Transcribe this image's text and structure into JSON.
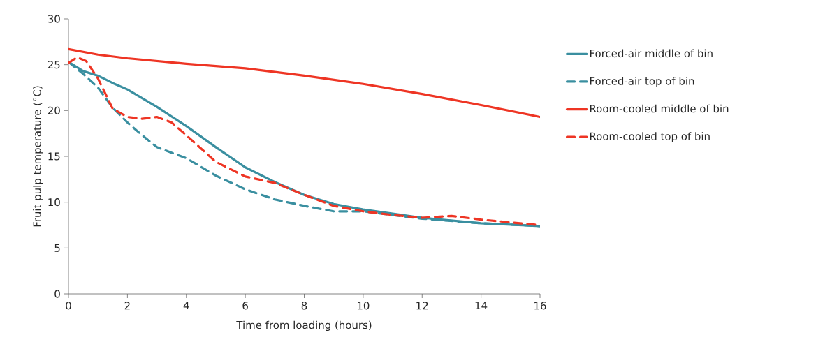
{
  "chart_data": {
    "type": "line",
    "xlabel": "Time from loading (hours)",
    "ylabel": "Fruit pulp temperature (°C)",
    "xlim": [
      0,
      16
    ],
    "ylim": [
      0,
      30
    ],
    "xticks": [
      0,
      2,
      4,
      6,
      8,
      10,
      12,
      14,
      16
    ],
    "yticks": [
      0,
      5,
      10,
      15,
      20,
      25,
      30
    ],
    "grid": false,
    "legend": "right",
    "marker": "none",
    "series": [
      {
        "name": "Forced-air middle of bin",
        "color": "#3a8fa0",
        "line_style": "solid",
        "x": [
          0,
          0.5,
          1,
          1.5,
          2,
          3,
          4,
          5,
          6,
          7,
          8,
          9,
          10,
          12,
          14,
          16
        ],
        "values": [
          25.3,
          24.3,
          23.8,
          23.0,
          22.3,
          20.4,
          18.3,
          16.0,
          13.8,
          12.2,
          10.8,
          9.8,
          9.2,
          8.3,
          7.7,
          7.4
        ]
      },
      {
        "name": "Forced-air top of bin",
        "color": "#3a8fa0",
        "line_style": "dashed",
        "x": [
          0,
          0.5,
          1,
          1.5,
          2,
          2.5,
          3,
          4,
          5,
          6,
          7,
          8,
          9,
          10,
          12,
          14,
          16
        ],
        "values": [
          25.3,
          24.0,
          22.5,
          20.3,
          18.7,
          17.3,
          16.0,
          14.8,
          12.9,
          11.4,
          10.3,
          9.6,
          9.0,
          9.0,
          8.2,
          7.7,
          7.4
        ]
      },
      {
        "name": "Room-cooled middle of bin",
        "color": "#ee3524",
        "line_style": "solid",
        "x": [
          0,
          1,
          2,
          4,
          6,
          8,
          10,
          12,
          14,
          16
        ],
        "values": [
          26.7,
          26.1,
          25.7,
          25.1,
          24.6,
          23.8,
          22.9,
          21.8,
          20.6,
          19.3
        ]
      },
      {
        "name": "Room-cooled top of bin",
        "color": "#ee3524",
        "line_style": "dashed",
        "x": [
          0,
          0.3,
          0.6,
          1,
          1.5,
          2,
          2.5,
          3,
          3.5,
          4,
          5,
          6,
          7,
          8,
          9,
          10,
          11,
          12,
          13,
          14,
          16
        ],
        "values": [
          25.2,
          25.8,
          25.4,
          23.5,
          20.2,
          19.3,
          19.1,
          19.3,
          18.7,
          17.3,
          14.4,
          12.8,
          12.1,
          10.8,
          9.6,
          9.0,
          8.6,
          8.3,
          8.5,
          8.1,
          7.5
        ]
      }
    ]
  }
}
